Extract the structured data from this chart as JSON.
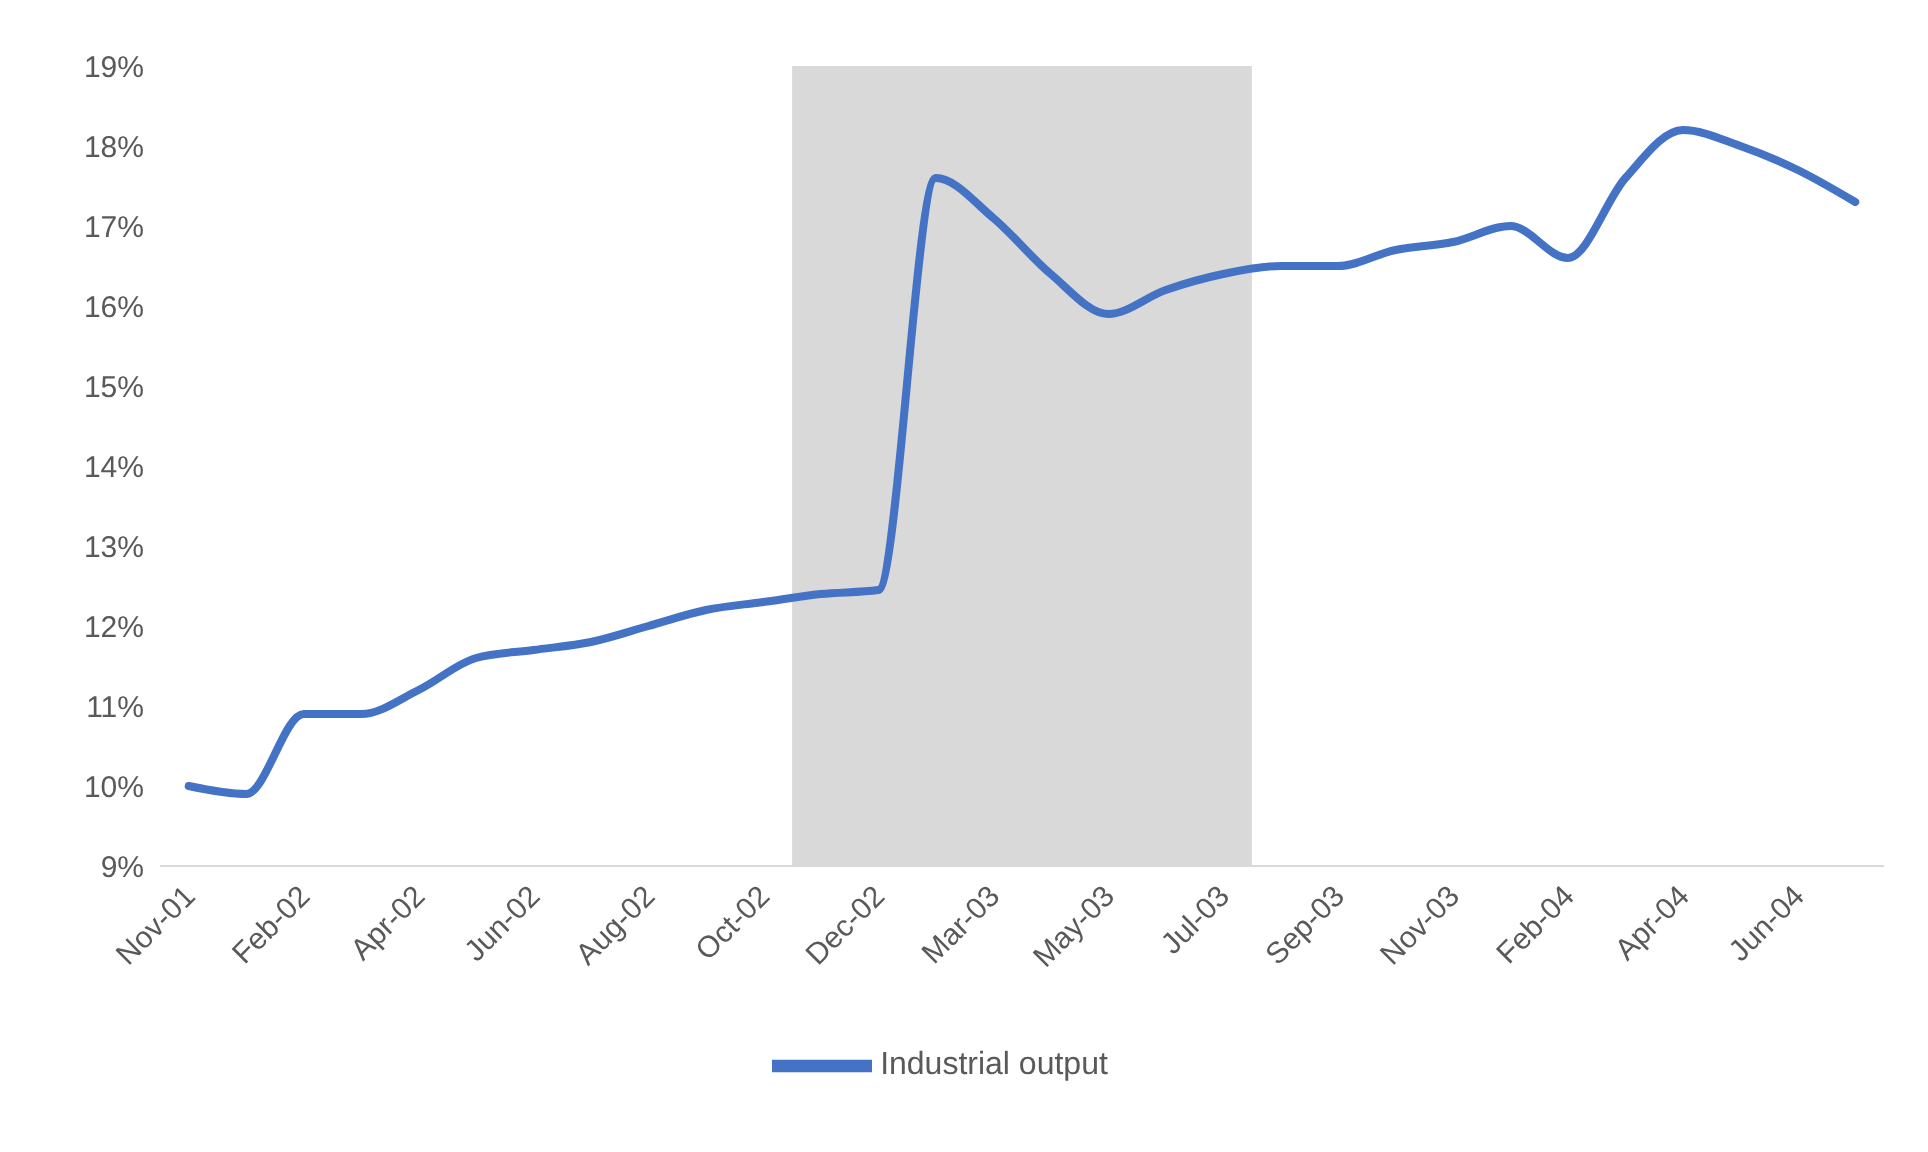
{
  "chart_data": {
    "type": "line",
    "categories": [
      "Nov-01",
      null,
      "Feb-02",
      null,
      "Apr-02",
      null,
      "Jun-02",
      null,
      "Aug-02",
      null,
      "Oct-02",
      null,
      "Dec-02",
      null,
      "Mar-03",
      null,
      "May-03",
      null,
      "Jul-03",
      null,
      "Sep-03",
      null,
      "Nov-03",
      null,
      "Feb-04",
      null,
      "Apr-04",
      null,
      "Jun-04",
      null
    ],
    "series": [
      {
        "name": "Industrial output",
        "color": "#4472c4",
        "values": [
          10.0,
          9.9,
          10.9,
          10.9,
          11.2,
          11.6,
          11.7,
          11.8,
          12.0,
          12.2,
          12.3,
          12.4,
          12.45,
          17.6,
          17.1,
          16.4,
          15.9,
          16.2,
          16.4,
          16.5,
          16.5,
          16.7,
          16.8,
          17.0,
          16.6,
          17.6,
          18.2,
          18.0,
          17.7,
          17.3
        ]
      }
    ],
    "ylim": [
      9,
      19
    ],
    "yticks": [
      {
        "value": 9,
        "label": "9%"
      },
      {
        "value": 10,
        "label": "10%"
      },
      {
        "value": 11,
        "label": "11%"
      },
      {
        "value": 12,
        "label": "12%"
      },
      {
        "value": 13,
        "label": "13%"
      },
      {
        "value": 14,
        "label": "14%"
      },
      {
        "value": 15,
        "label": "15%"
      },
      {
        "value": 16,
        "label": "16%"
      },
      {
        "value": 17,
        "label": "17%"
      },
      {
        "value": 18,
        "label": "18%"
      },
      {
        "value": 19,
        "label": "19%"
      }
    ],
    "bands": [
      {
        "axis": "x",
        "from": "Oct-02",
        "to": "Jul-03",
        "color": "#d9d9d9"
      }
    ],
    "legend": "bottom",
    "marker": "none",
    "line_style": "solid"
  }
}
